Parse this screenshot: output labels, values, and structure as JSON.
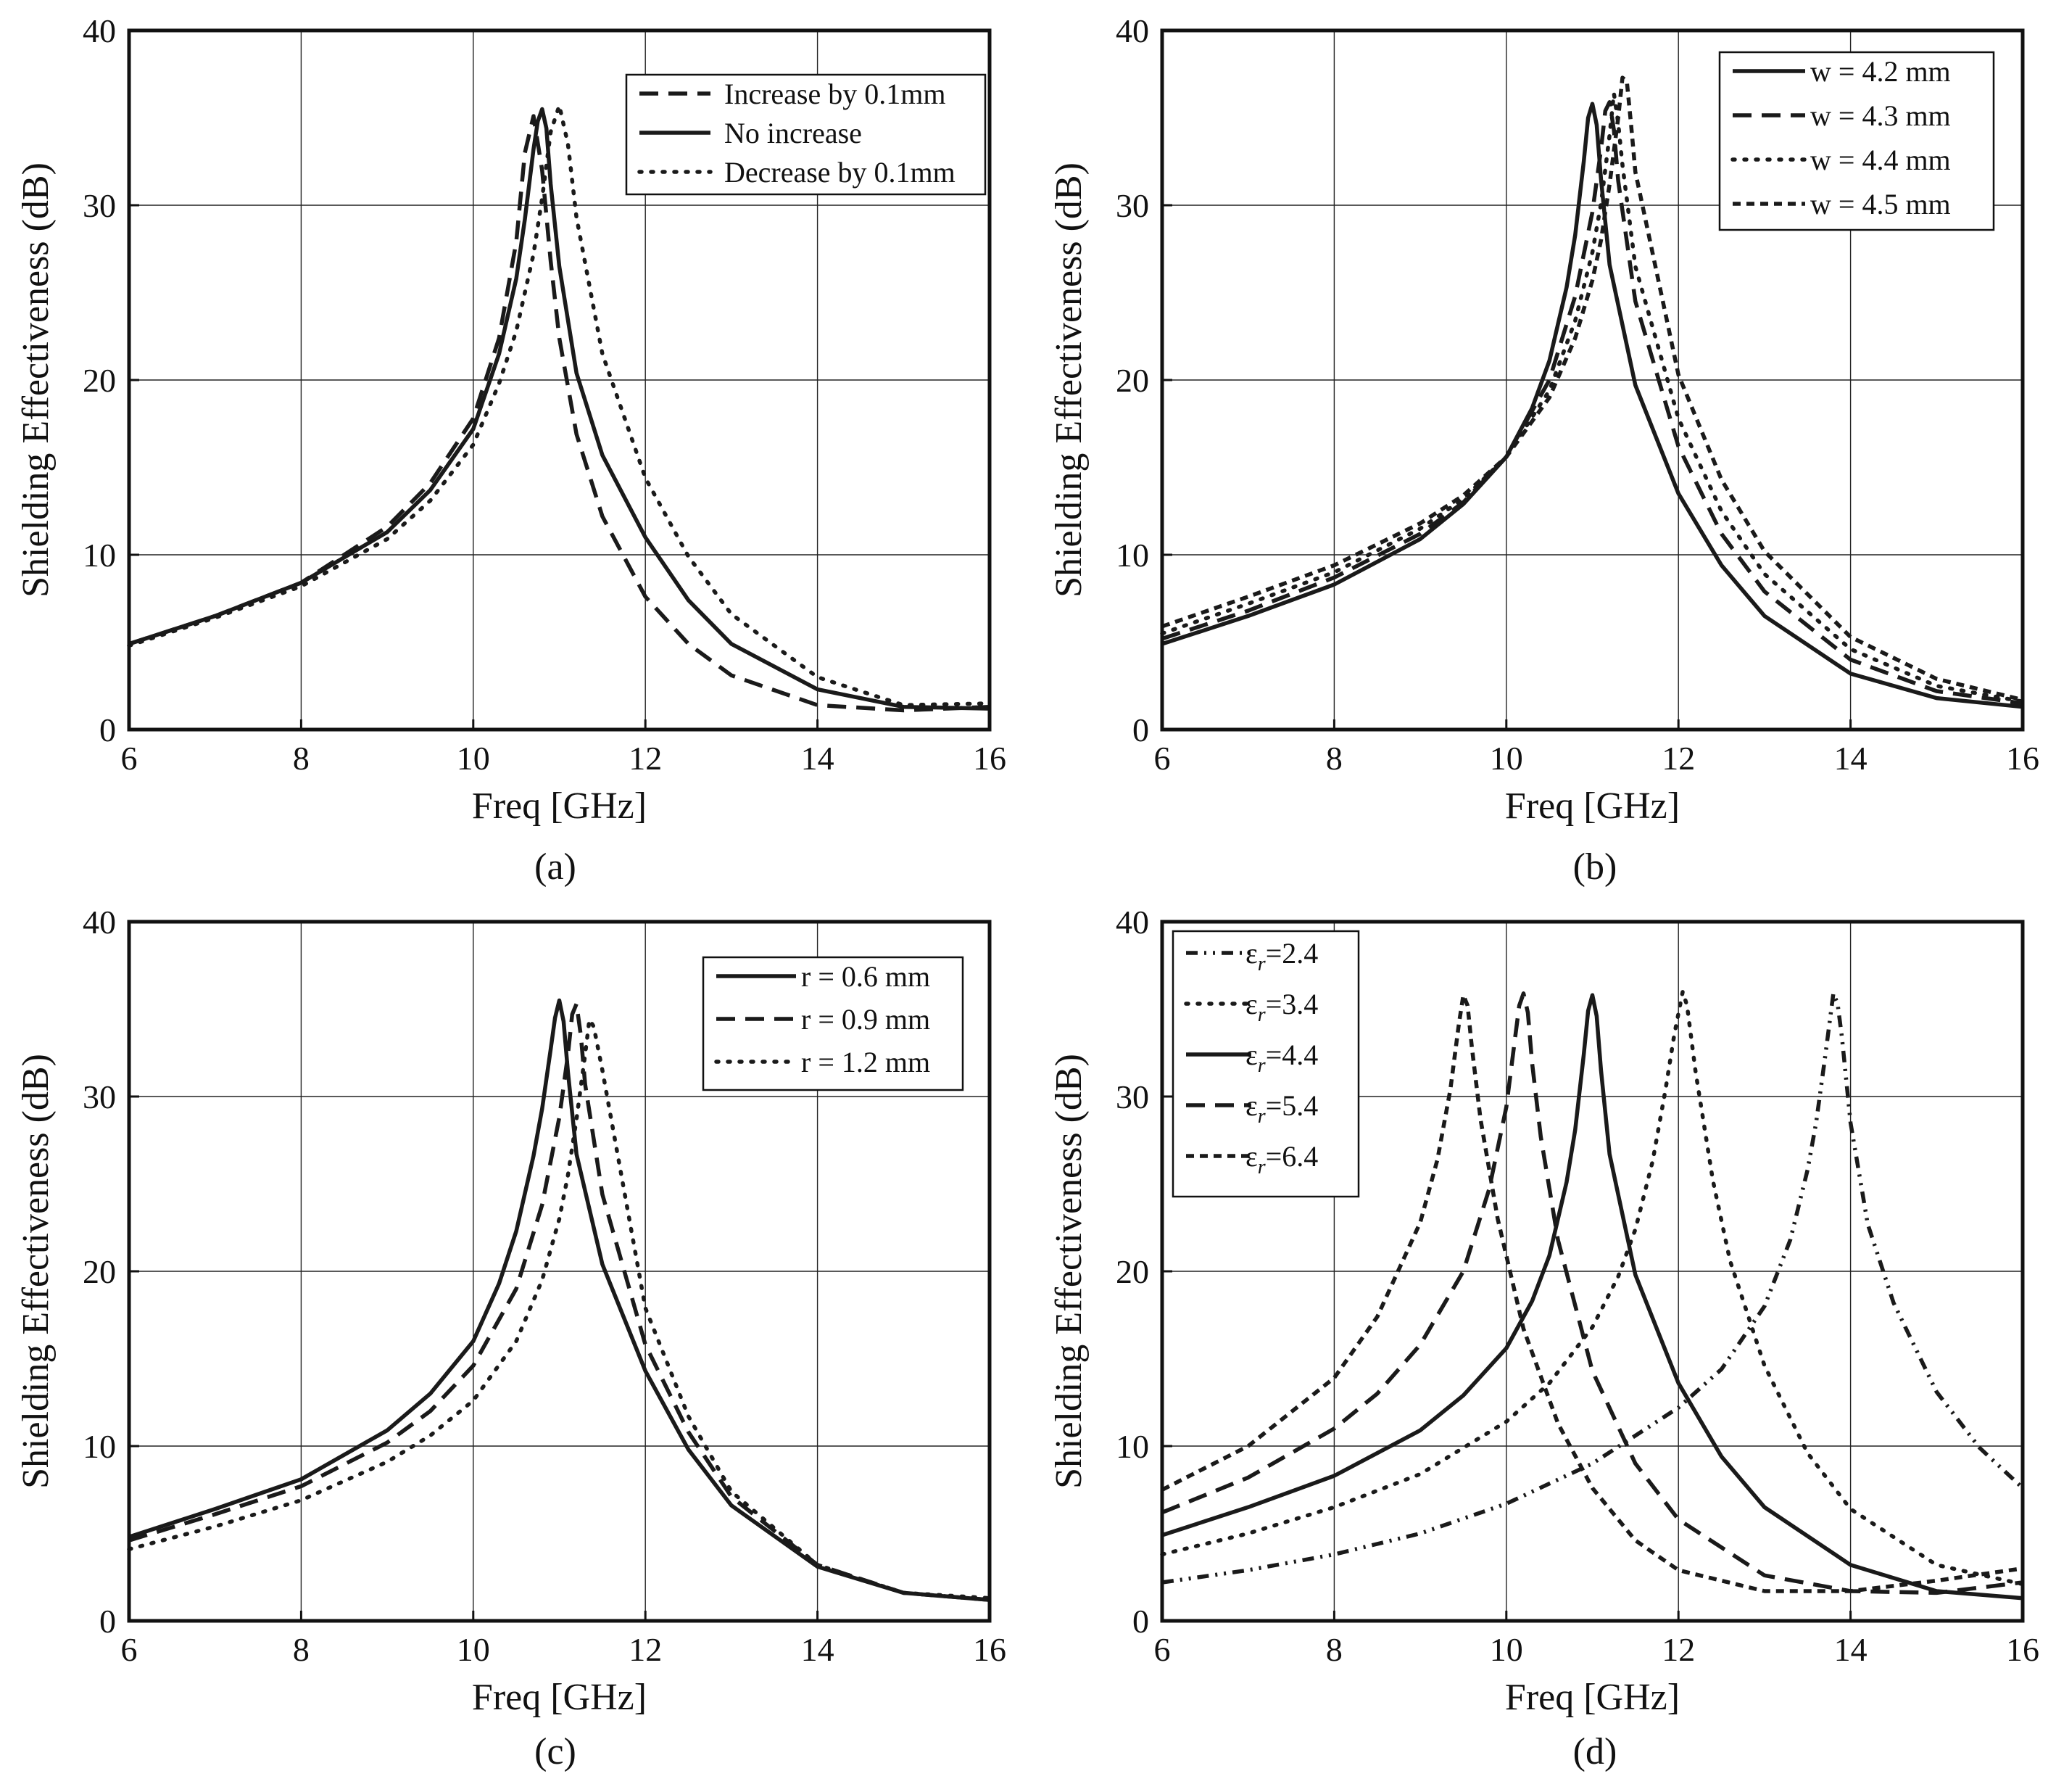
{
  "panels": [
    {
      "caption": "(a)",
      "chart_data": {
        "type": "line",
        "xlabel": "Freq [GHz]",
        "ylabel": "Shielding Effectiveness (dB)",
        "xlim": [
          6,
          16
        ],
        "ylim": [
          0,
          40
        ],
        "xticks": [
          "6",
          "8",
          "10",
          "12",
          "14",
          "16"
        ],
        "yticks": [
          "0",
          "10",
          "20",
          "30",
          "40"
        ],
        "grid": true,
        "legend_position": "top-right",
        "series": [
          {
            "name": "Increase by 0.1mm",
            "style": "dash",
            "x": [
              6,
              7,
              8,
              9,
              9.5,
              10,
              10.3,
              10.5,
              10.6,
              10.7,
              10.8,
              10.9,
              11,
              11.2,
              11.5,
              12,
              12.5,
              13,
              14,
              15,
              16
            ],
            "y": [
              4.9,
              6.5,
              8.4,
              11.6,
              14.1,
              17.8,
              22.4,
              27.9,
              33,
              35.1,
              32,
              26.8,
              22.4,
              16.9,
              12.2,
              7.6,
              4.9,
              3.1,
              1.4,
              1.1,
              1.3
            ]
          },
          {
            "name": "No increase",
            "style": "solid",
            "x": [
              6,
              7,
              8,
              9,
              9.5,
              10,
              10.3,
              10.5,
              10.6,
              10.7,
              10.75,
              10.8,
              10.85,
              10.9,
              11,
              11.2,
              11.5,
              12,
              12.5,
              13,
              14,
              15,
              16
            ],
            "y": [
              4.9,
              6.5,
              8.4,
              11.3,
              13.7,
              17.2,
              21.5,
              25.8,
              29.2,
              33.2,
              34.8,
              35.5,
              34.4,
              31.2,
              26.5,
              20.4,
              15.7,
              11,
              7.4,
              4.9,
              2.3,
              1.3,
              1.2
            ]
          },
          {
            "name": "Decrease by 0.1mm",
            "style": "dot",
            "x": [
              6,
              7,
              8,
              9,
              9.5,
              10,
              10.3,
              10.5,
              10.7,
              10.8,
              10.9,
              11,
              11.1,
              11.2,
              11.5,
              12,
              12.5,
              13,
              14,
              15,
              16
            ],
            "y": [
              4.8,
              6.4,
              8.2,
              10.9,
              13.1,
              16.3,
              19.8,
              22.8,
              27.2,
              30.4,
              34.2,
              35.7,
              33.5,
              29.3,
              21.5,
              14.4,
              9.9,
              6.6,
              3,
              1.4,
              1.5
            ]
          }
        ]
      }
    },
    {
      "caption": "(b)",
      "chart_data": {
        "type": "line",
        "xlabel": "Freq [GHz]",
        "ylabel": "Shielding Effectiveness (dB)",
        "xlim": [
          6,
          16
        ],
        "ylim": [
          0,
          40
        ],
        "xticks": [
          "6",
          "8",
          "10",
          "12",
          "14",
          "16"
        ],
        "yticks": [
          "0",
          "10",
          "20",
          "30",
          "40"
        ],
        "grid": true,
        "legend_position": "top-right",
        "series": [
          {
            "name": "w = 4.2 mm",
            "style": "solid",
            "x": [
              6,
              7,
              8,
              9,
              9.5,
              10,
              10.3,
              10.5,
              10.7,
              10.8,
              10.9,
              10.95,
              11,
              11.05,
              11.1,
              11.2,
              11.5,
              12,
              12.5,
              13,
              14,
              15,
              16
            ],
            "y": [
              4.9,
              6.5,
              8.3,
              10.9,
              12.9,
              15.6,
              18.4,
              21.1,
              25.3,
              28.3,
              32.5,
              35,
              35.8,
              34.6,
              31.5,
              26.6,
              19.7,
              13.5,
              9.4,
              6.5,
              3.2,
              1.8,
              1.3
            ]
          },
          {
            "name": "w = 4.3 mm",
            "style": "dash",
            "x": [
              6,
              7,
              8,
              9,
              9.5,
              10,
              10.5,
              10.8,
              11,
              11.1,
              11.15,
              11.2,
              11.25,
              11.3,
              11.5,
              12,
              12.5,
              13,
              14,
              15,
              16
            ],
            "y": [
              5.2,
              6.8,
              8.7,
              11.2,
              13,
              15.6,
              20,
              24.8,
              29.6,
              33.2,
              35.4,
              35.9,
              34.3,
              31.4,
              24.5,
              16.2,
              11.2,
              7.9,
              4,
              2.2,
              1.5
            ]
          },
          {
            "name": "w = 4.4 mm",
            "style": "dot",
            "x": [
              6,
              7,
              8,
              9,
              9.5,
              10,
              10.5,
              10.8,
              11,
              11.1,
              11.2,
              11.25,
              11.3,
              11.35,
              11.5,
              12,
              12.5,
              13,
              14,
              15,
              16
            ],
            "y": [
              5.5,
              7.2,
              9,
              11.5,
              13.2,
              15.6,
              19.4,
              23.4,
              27.3,
              30.1,
              34,
              36.4,
              34.7,
              32.3,
              26.5,
              17.8,
              12.5,
              8.9,
              4.6,
              2.5,
              1.6
            ]
          },
          {
            "name": "w = 4.5 mm",
            "style": "shortdash",
            "x": [
              6,
              7,
              8,
              9,
              9.5,
              10,
              10.5,
              10.8,
              11,
              11.1,
              11.2,
              11.3,
              11.35,
              11.4,
              11.45,
              11.5,
              12,
              12.5,
              13,
              14,
              15,
              16
            ],
            "y": [
              5.9,
              7.6,
              9.4,
              11.8,
              13.4,
              15.6,
              19,
              22.4,
              25.7,
              28,
              31.2,
              35,
              37.3,
              37.1,
              34.6,
              31.9,
              20.3,
              14.3,
              10.2,
              5.3,
              2.9,
              1.7
            ]
          }
        ]
      }
    },
    {
      "caption": "(c)",
      "chart_data": {
        "type": "line",
        "xlabel": "Freq [GHz]",
        "ylabel": "Shielding Effectiveness (dB)",
        "xlim": [
          6,
          16
        ],
        "ylim": [
          0,
          40
        ],
        "xticks": [
          "6",
          "8",
          "10",
          "12",
          "14",
          "16"
        ],
        "yticks": [
          "0",
          "10",
          "20",
          "30",
          "40"
        ],
        "grid": true,
        "legend_position": "top-right",
        "series": [
          {
            "name": "r = 0.6 mm",
            "style": "solid",
            "x": [
              6,
              7,
              8,
              9,
              9.5,
              10,
              10.3,
              10.5,
              10.7,
              10.8,
              10.9,
              10.95,
              11,
              11.05,
              11.1,
              11.2,
              11.5,
              12,
              12.5,
              13,
              14,
              15,
              16
            ],
            "y": [
              4.8,
              6.4,
              8.1,
              10.9,
              13,
              16,
              19.3,
              22.3,
              26.6,
              29.3,
              32.7,
              34.5,
              35.5,
              34.3,
              31.4,
              26.7,
              20.4,
              14.3,
              9.8,
              6.6,
              3.1,
              1.6,
              1.2
            ]
          },
          {
            "name": "r = 0.9 mm",
            "style": "dash",
            "x": [
              6,
              7,
              8,
              9,
              9.5,
              10,
              10.5,
              10.8,
              11,
              11.1,
              11.15,
              11.2,
              11.25,
              11.3,
              11.5,
              12,
              12.5,
              13,
              14,
              15,
              16
            ],
            "y": [
              4.6,
              6.1,
              7.7,
              10.2,
              12,
              14.6,
              19,
              23.8,
              28.8,
              32.4,
              34.7,
              35.3,
              33.5,
              30.7,
              24.4,
              15.8,
              10.8,
              7.1,
              3.2,
              1.6,
              1.2
            ]
          },
          {
            "name": "r = 1.2 mm",
            "style": "dot",
            "x": [
              6,
              7,
              8,
              9,
              9.5,
              10,
              10.5,
              10.8,
              11,
              11.1,
              11.2,
              11.3,
              11.35,
              11.4,
              11.5,
              12,
              12.5,
              13,
              14,
              15,
              16
            ],
            "y": [
              4.1,
              5.4,
              6.9,
              9.1,
              10.6,
              12.6,
              16,
              19.5,
              23,
              25.5,
              28.7,
              32.4,
              34.4,
              34,
              31.5,
              17.9,
              11.7,
              7.4,
              3.2,
              1.6,
              1.3
            ]
          }
        ]
      }
    },
    {
      "caption": "(d)",
      "chart_data": {
        "type": "line",
        "xlabel": "Freq [GHz]",
        "ylabel": "Shielding Effectiveness (dB)",
        "xlim": [
          6,
          16
        ],
        "ylim": [
          0,
          40
        ],
        "xticks": [
          "6",
          "8",
          "10",
          "12",
          "14",
          "16"
        ],
        "yticks": [
          "0",
          "10",
          "20",
          "30",
          "40"
        ],
        "grid": true,
        "legend_position": "top-left",
        "series": [
          {
            "name": "ε=2.4",
            "label_sym": "ε",
            "label_sub": "r",
            "label_val": "=2.4",
            "style": "dashdotdot",
            "x": [
              6,
              7,
              8,
              9,
              10,
              11,
              12,
              12.5,
              13,
              13.3,
              13.5,
              13.6,
              13.7,
              13.8,
              13.85,
              13.9,
              14,
              14.2,
              14.5,
              15,
              15.5,
              16
            ],
            "y": [
              2.2,
              2.9,
              3.8,
              5,
              6.7,
              9,
              12.2,
              14.4,
              18,
              21.8,
              25.8,
              28.5,
              32.1,
              35.9,
              35.3,
              33.4,
              28.5,
              22.7,
              18.2,
              13.1,
              9.9,
              7.6
            ]
          },
          {
            "name": "ε=3.4",
            "label_sym": "ε",
            "label_sub": "r",
            "label_val": "=3.4",
            "style": "dot",
            "x": [
              6,
              7,
              8,
              9,
              10,
              10.5,
              11,
              11.3,
              11.5,
              11.7,
              11.85,
              11.95,
              12.05,
              12.1,
              12.2,
              12.4,
              12.6,
              13,
              13.5,
              14,
              15,
              16
            ],
            "y": [
              3.8,
              5,
              6.5,
              8.4,
              11.4,
              13.6,
              16.8,
              19.7,
              22.4,
              26.3,
              30.4,
              33.5,
              36,
              35.2,
              31.4,
              25.2,
              20.6,
              14.6,
              9.6,
              6.4,
              3.2,
              2.1
            ]
          },
          {
            "name": "ε=4.4",
            "label_sym": "ε",
            "label_sub": "r",
            "label_val": "=4.4",
            "style": "solid",
            "x": [
              6,
              7,
              8,
              9,
              9.5,
              10,
              10.3,
              10.5,
              10.7,
              10.8,
              10.9,
              10.95,
              11,
              11.05,
              11.1,
              11.2,
              11.5,
              12,
              12.5,
              13,
              14,
              15,
              16
            ],
            "y": [
              4.9,
              6.5,
              8.3,
              10.9,
              12.9,
              15.6,
              18.3,
              20.9,
              25.1,
              28.1,
              32.4,
              34.9,
              35.8,
              34.6,
              31.5,
              26.7,
              19.8,
              13.6,
              9.4,
              6.5,
              3.2,
              1.7,
              1.3
            ]
          },
          {
            "name": "ε=5.4",
            "label_sym": "ε",
            "label_sub": "r",
            "label_val": "=5.4",
            "style": "dash",
            "x": [
              6,
              7,
              8,
              8.5,
              9,
              9.5,
              9.8,
              10,
              10.1,
              10.15,
              10.2,
              10.25,
              10.3,
              10.4,
              10.6,
              11,
              11.5,
              12,
              13,
              14,
              15,
              16
            ],
            "y": [
              6.2,
              8.2,
              11,
              13,
              15.8,
              20,
              24.7,
              29.4,
              33.3,
              35.2,
              35.9,
              34.8,
              31.9,
              27.7,
              21.8,
              14.3,
              9,
              5.8,
              2.6,
              1.7,
              1.6,
              2.2
            ]
          },
          {
            "name": "ε=6.4",
            "label_sym": "ε",
            "label_sub": "r",
            "label_val": "=6.4",
            "style": "shortdash",
            "x": [
              6,
              7,
              8,
              8.5,
              9,
              9.2,
              9.35,
              9.45,
              9.5,
              9.55,
              9.6,
              9.7,
              9.9,
              10.2,
              10.6,
              11,
              11.5,
              12,
              13,
              14,
              15,
              16
            ],
            "y": [
              7.5,
              10,
              13.9,
              17.4,
              22.8,
              26.4,
              30.4,
              34.2,
              35.8,
              35.2,
              32.8,
              28.7,
              23,
              16.7,
              11.3,
              7.6,
              4.6,
              2.9,
              1.7,
              1.7,
              2.3,
              3
            ]
          }
        ]
      }
    }
  ]
}
